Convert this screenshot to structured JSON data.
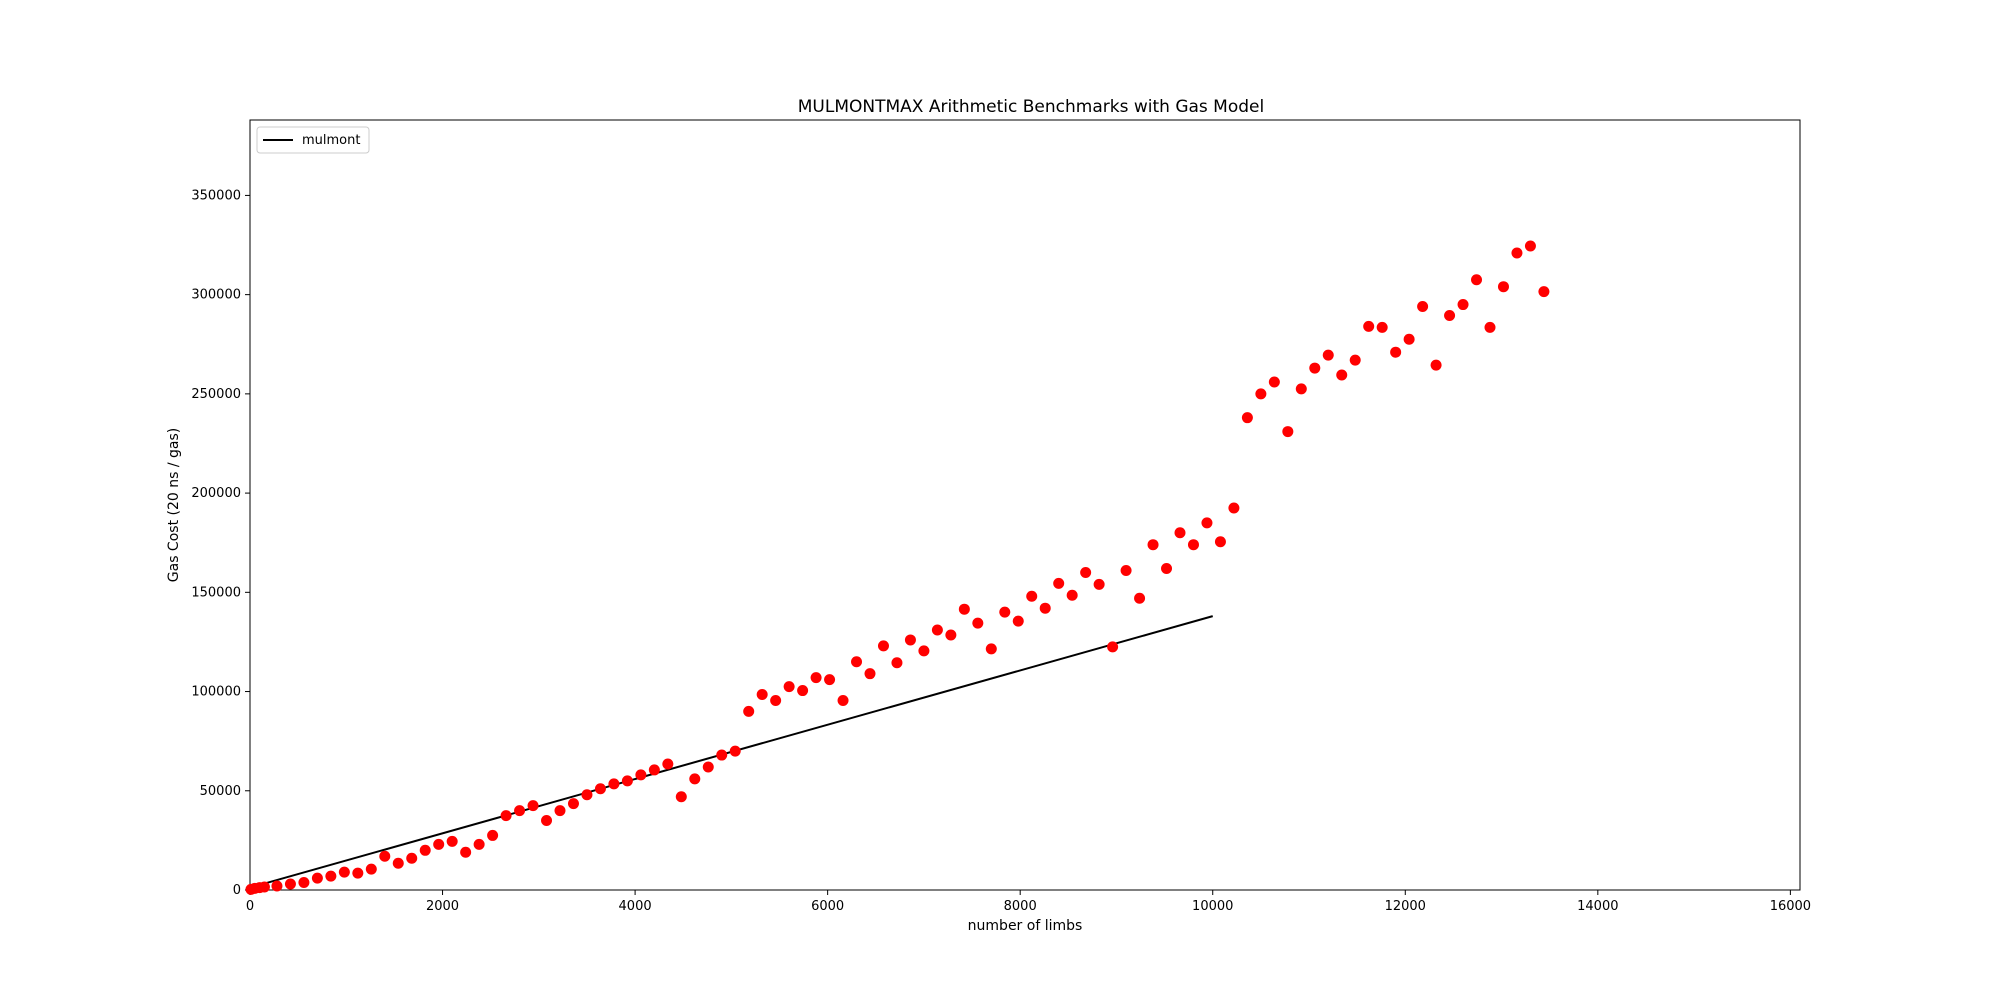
{
  "chart_data": {
    "type": "scatter",
    "title": "MULMONTMAX Arithmetic Benchmarks with Gas Model",
    "xlabel": "number of limbs",
    "ylabel": "Gas Cost (20 ns / gas)",
    "xlim": [
      0,
      16100
    ],
    "ylim": [
      0,
      388000
    ],
    "x_ticks": [
      0,
      2000,
      4000,
      6000,
      8000,
      10000,
      12000,
      14000,
      16000
    ],
    "y_ticks": [
      0,
      50000,
      100000,
      150000,
      200000,
      250000,
      300000,
      350000
    ],
    "grid": false,
    "legend_position": "top-left",
    "colors": {
      "points": "#ff0000",
      "line": "#000000"
    },
    "series": [
      {
        "name": "mulmont",
        "kind": "line",
        "x": [
          0,
          10000
        ],
        "y": [
          1200,
          138000
        ]
      },
      {
        "kind": "scatter",
        "x": [
          10,
          50,
          100,
          150,
          280,
          420,
          560,
          700,
          840,
          980,
          1120,
          1260,
          1400,
          1540,
          1680,
          1820,
          1960,
          2100,
          2240,
          2380,
          2520,
          2660,
          2800,
          2940,
          3080,
          3220,
          3360,
          3500,
          3640,
          3780,
          3920,
          4060,
          4200,
          4340,
          4480,
          4620,
          4760,
          4900,
          5040,
          5180,
          5320,
          5460,
          5600,
          5740,
          5880,
          6020,
          6160,
          6300,
          6440,
          6580,
          6720,
          6860,
          7000,
          7140,
          7280,
          7420,
          7560,
          7700,
          7840,
          7980,
          8120,
          8260,
          8400,
          8540,
          8680,
          8820,
          8960,
          9100,
          9240,
          9380,
          9520,
          9660,
          9800,
          9940,
          10080,
          10220,
          10360,
          10500,
          10640,
          10780,
          10920,
          11060,
          11200,
          11340,
          11480,
          11620,
          11760,
          11900,
          12040,
          12180,
          12320,
          12460,
          12600,
          12740,
          12880,
          13020,
          13160,
          13300,
          13440
        ],
        "y": [
          300,
          800,
          1200,
          1500,
          2000,
          3000,
          3800,
          6000,
          7000,
          9000,
          8500,
          10500,
          17000,
          13500,
          16000,
          20000,
          23000,
          24500,
          19000,
          23000,
          27500,
          37500,
          40000,
          42500,
          35000,
          40000,
          43500,
          48000,
          51000,
          53500,
          55000,
          58000,
          60500,
          63500,
          47000,
          56000,
          62000,
          68000,
          70000,
          90000,
          98500,
          95500,
          102500,
          100500,
          107000,
          106000,
          95500,
          115000,
          109000,
          123000,
          114500,
          126000,
          120500,
          131000,
          128500,
          141500,
          134500,
          121500,
          140000,
          135500,
          148000,
          142000,
          154500,
          148500,
          160000,
          154000,
          122500,
          161000,
          147000,
          174000,
          162000,
          180000,
          174000,
          185000,
          175500,
          192500,
          238000,
          250000,
          256000,
          231000,
          252500,
          263000,
          269500,
          259500,
          267000,
          284000,
          283500,
          271000,
          277500,
          294000,
          264500,
          289500,
          295000,
          307500,
          283500,
          304000,
          321000,
          324500,
          301500
        ]
      }
    ]
  }
}
